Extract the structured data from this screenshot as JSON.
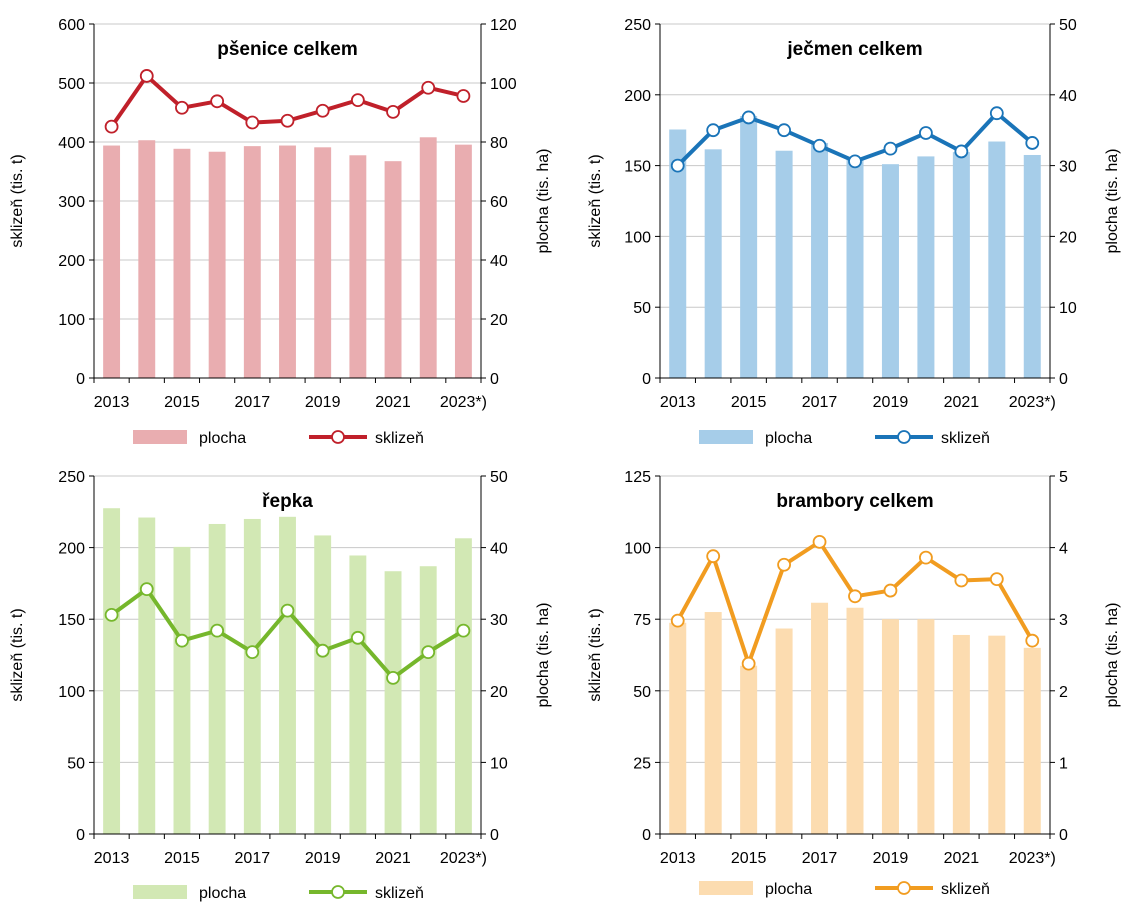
{
  "chart_data": [
    {
      "type": "bar",
      "title": "pšenice celkem",
      "ylabel_left": "sklizeň (tis. t)",
      "ylabel_right": "plocha (tis. ha)",
      "categories": [
        "2013",
        "2014",
        "2015",
        "2016",
        "2017",
        "2018",
        "2019",
        "2020",
        "2021",
        "2022",
        "2023*)"
      ],
      "x_tick_labels": [
        "2013",
        "2015",
        "2017",
        "2019",
        "2021",
        "2023*)"
      ],
      "ylim_left": [
        0,
        600
      ],
      "yticks_left": [
        0,
        100,
        200,
        300,
        400,
        500,
        600
      ],
      "ylim_right": [
        0,
        120
      ],
      "yticks_right": [
        0,
        20,
        40,
        60,
        80,
        100,
        120
      ],
      "grid": true,
      "legend_position": "bottom",
      "bar_color": "#e9adb0",
      "line_color": "#c0202a",
      "series": [
        {
          "name": "plocha",
          "type": "bar",
          "axis": "right",
          "values": [
            78.8,
            80.6,
            77.7,
            76.7,
            78.6,
            78.8,
            78.2,
            75.5,
            73.5,
            81.6,
            79.1
          ]
        },
        {
          "name": "sklizeň",
          "type": "line",
          "axis": "left",
          "values": [
            426,
            512,
            458,
            469,
            433,
            436,
            453,
            471,
            451,
            492,
            478
          ]
        }
      ]
    },
    {
      "type": "bar",
      "title": "ječmen celkem",
      "ylabel_left": "sklizeň (tis. t)",
      "ylabel_right": "plocha (tis. ha)",
      "categories": [
        "2013",
        "2014",
        "2015",
        "2016",
        "2017",
        "2018",
        "2019",
        "2020",
        "2021",
        "2022",
        "2023*)"
      ],
      "x_tick_labels": [
        "2013",
        "2015",
        "2017",
        "2019",
        "2021",
        "2023*)"
      ],
      "ylim_left": [
        0,
        250
      ],
      "yticks_left": [
        0,
        50,
        100,
        150,
        200,
        250
      ],
      "ylim_right": [
        0,
        50
      ],
      "yticks_right": [
        0,
        10,
        20,
        30,
        40,
        50
      ],
      "grid": true,
      "legend_position": "bottom",
      "bar_color": "#a6cde9",
      "line_color": "#1a74b8",
      "series": [
        {
          "name": "plocha",
          "type": "bar",
          "axis": "right",
          "values": [
            35.1,
            32.3,
            37.0,
            32.1,
            33.2,
            30.9,
            30.2,
            31.3,
            31.9,
            33.4,
            31.5
          ]
        },
        {
          "name": "sklizeň",
          "type": "line",
          "axis": "left",
          "values": [
            150,
            175,
            184,
            175,
            164,
            153,
            162,
            173,
            160,
            187,
            166
          ]
        }
      ]
    },
    {
      "type": "bar",
      "title": "řepka",
      "ylabel_left": "sklizeň (tis. t)",
      "ylabel_right": "plocha (tis. ha)",
      "categories": [
        "2013",
        "2014",
        "2015",
        "2016",
        "2017",
        "2018",
        "2019",
        "2020",
        "2021",
        "2022",
        "2023*)"
      ],
      "x_tick_labels": [
        "2013",
        "2015",
        "2017",
        "2019",
        "2021",
        "2023*)"
      ],
      "ylim_left": [
        0,
        250
      ],
      "yticks_left": [
        0,
        50,
        100,
        150,
        200,
        250
      ],
      "ylim_right": [
        0,
        50
      ],
      "yticks_right": [
        0,
        10,
        20,
        30,
        40,
        50
      ],
      "grid": true,
      "legend_position": "bottom",
      "bar_color": "#d2e8b4",
      "line_color": "#76b72c",
      "series": [
        {
          "name": "plocha",
          "type": "bar",
          "axis": "right",
          "values": [
            45.5,
            44.2,
            40.1,
            43.3,
            44.0,
            44.3,
            41.7,
            38.9,
            36.7,
            37.4,
            41.3
          ]
        },
        {
          "name": "sklizeň",
          "type": "line",
          "axis": "left",
          "values": [
            153,
            171,
            135,
            142,
            127,
            156,
            128,
            137,
            109,
            127,
            142
          ]
        }
      ]
    },
    {
      "type": "bar",
      "title": "brambory celkem",
      "ylabel_left": "sklizeň (tis. t)",
      "ylabel_right": "plocha (tis. ha)",
      "categories": [
        "2013",
        "2014",
        "2015",
        "2016",
        "2017",
        "2018",
        "2019",
        "2020",
        "2021",
        "2022",
        "2023*)"
      ],
      "x_tick_labels": [
        "2013",
        "2015",
        "2017",
        "2019",
        "2021",
        "2023*)"
      ],
      "ylim_left": [
        0,
        125
      ],
      "yticks_left": [
        0,
        25,
        50,
        75,
        100,
        125
      ],
      "ylim_right": [
        0,
        5
      ],
      "yticks_right": [
        0,
        1,
        2,
        3,
        4,
        5
      ],
      "grid": true,
      "legend_position": "bottom",
      "bar_color": "#fcdcb0",
      "line_color": "#f19c20",
      "series": [
        {
          "name": "plocha",
          "type": "bar",
          "axis": "right",
          "values": [
            2.95,
            3.1,
            2.35,
            2.87,
            3.23,
            3.16,
            3.0,
            3.0,
            2.78,
            2.77,
            2.6
          ]
        },
        {
          "name": "sklizeň",
          "type": "line",
          "axis": "left",
          "values": [
            74.5,
            97,
            59.5,
            94,
            102,
            83,
            85,
            96.5,
            88.5,
            89,
            67.5
          ]
        }
      ]
    }
  ]
}
